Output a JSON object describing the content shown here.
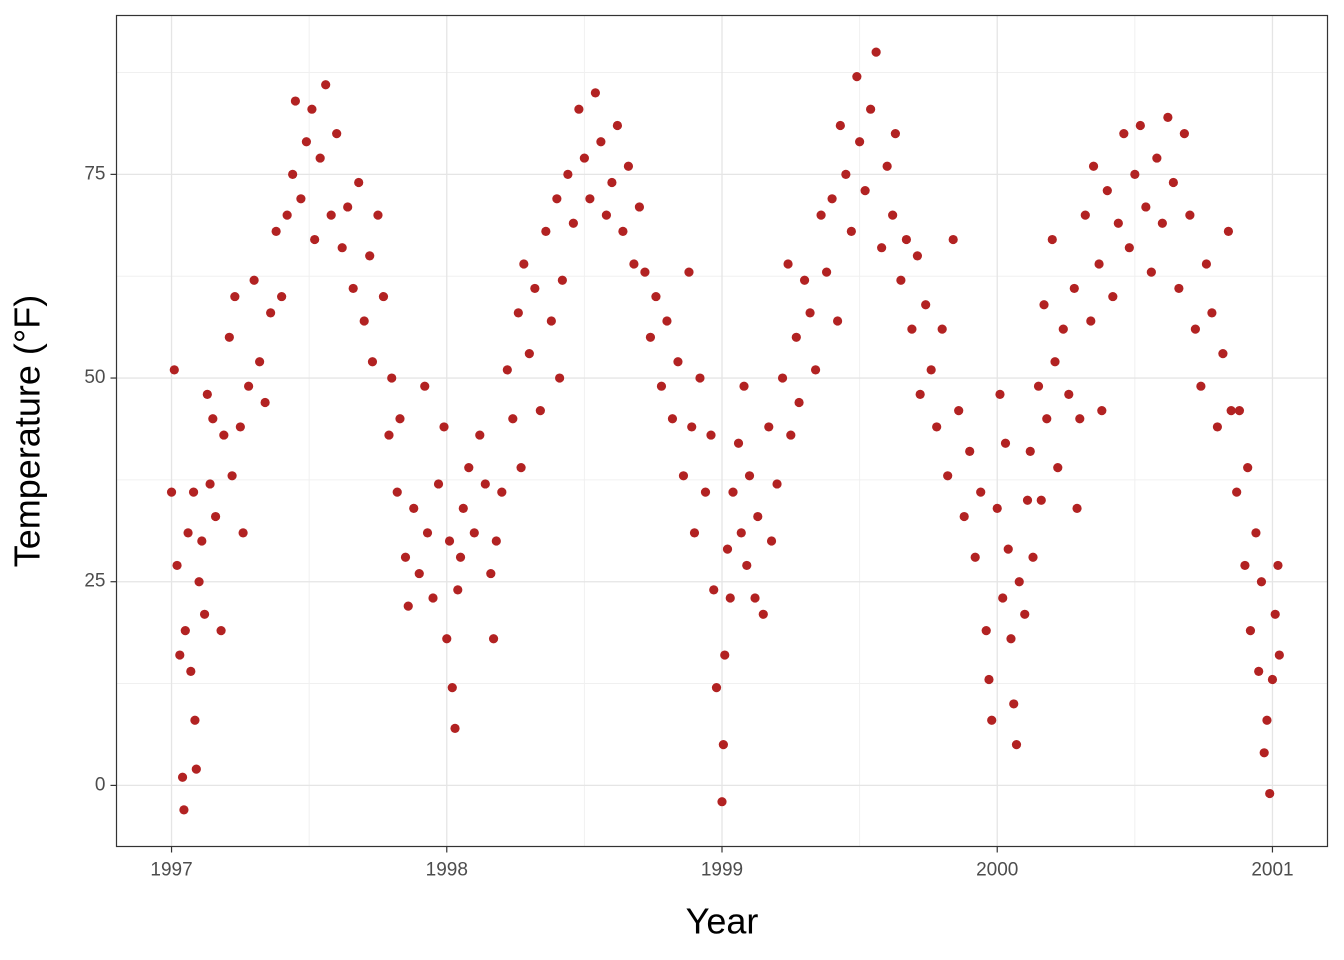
{
  "chart_data": {
    "type": "scatter",
    "x_label": "Year",
    "y_label": "Temperature (°F)",
    "color": "#b22222",
    "grid": true,
    "xlim": [
      1996.8,
      2001.2
    ],
    "xticks": [
      1997,
      1998,
      1999,
      2000,
      2001
    ],
    "ylim": [
      -7.5,
      94.5
    ],
    "yticks": [
      0,
      25,
      50,
      75
    ],
    "x": [
      1997.0,
      1997.01,
      1997.02,
      1997.03,
      1997.04,
      1997.045,
      1997.05,
      1997.06,
      1997.07,
      1997.08,
      1997.085,
      1997.09,
      1997.1,
      1997.11,
      1997.12,
      1997.13,
      1997.14,
      1997.15,
      1997.16,
      1997.18,
      1997.19,
      1997.21,
      1997.22,
      1997.23,
      1997.25,
      1997.26,
      1997.28,
      1997.3,
      1997.32,
      1997.34,
      1997.36,
      1997.38,
      1997.4,
      1997.42,
      1997.44,
      1997.45,
      1997.47,
      1997.49,
      1997.51,
      1997.52,
      1997.54,
      1997.56,
      1997.58,
      1997.6,
      1997.62,
      1997.64,
      1997.66,
      1997.68,
      1997.7,
      1997.72,
      1997.73,
      1997.75,
      1997.77,
      1997.79,
      1997.8,
      1997.82,
      1997.83,
      1997.85,
      1997.86,
      1997.88,
      1997.9,
      1997.92,
      1997.93,
      1997.95,
      1997.97,
      1997.99,
      1998.0,
      1998.01,
      1998.02,
      1998.03,
      1998.04,
      1998.05,
      1998.06,
      1998.08,
      1998.1,
      1998.12,
      1998.14,
      1998.16,
      1998.17,
      1998.18,
      1998.2,
      1998.22,
      1998.24,
      1998.26,
      1998.27,
      1998.28,
      1998.3,
      1998.32,
      1998.34,
      1998.36,
      1998.38,
      1998.4,
      1998.41,
      1998.42,
      1998.44,
      1998.46,
      1998.48,
      1998.5,
      1998.52,
      1998.54,
      1998.56,
      1998.58,
      1998.6,
      1998.62,
      1998.64,
      1998.66,
      1998.68,
      1998.7,
      1998.72,
      1998.74,
      1998.76,
      1998.78,
      1998.8,
      1998.82,
      1998.84,
      1998.86,
      1998.88,
      1998.89,
      1998.9,
      1998.92,
      1998.94,
      1998.96,
      1998.97,
      1998.98,
      1999.0,
      1999.005,
      1999.01,
      1999.02,
      1999.03,
      1999.04,
      1999.06,
      1999.07,
      1999.08,
      1999.09,
      1999.1,
      1999.12,
      1999.13,
      1999.15,
      1999.17,
      1999.18,
      1999.2,
      1999.22,
      1999.24,
      1999.25,
      1999.27,
      1999.28,
      1999.3,
      1999.32,
      1999.34,
      1999.36,
      1999.38,
      1999.4,
      1999.42,
      1999.43,
      1999.45,
      1999.47,
      1999.49,
      1999.5,
      1999.52,
      1999.54,
      1999.56,
      1999.58,
      1999.6,
      1999.62,
      1999.63,
      1999.65,
      1999.67,
      1999.69,
      1999.71,
      1999.72,
      1999.74,
      1999.76,
      1999.78,
      1999.8,
      1999.82,
      1999.84,
      1999.86,
      1999.88,
      1999.9,
      1999.92,
      1999.94,
      1999.96,
      1999.97,
      1999.98,
      2000.0,
      2000.01,
      2000.02,
      2000.03,
      2000.04,
      2000.05,
      2000.06,
      2000.07,
      2000.08,
      2000.1,
      2000.11,
      2000.12,
      2000.13,
      2000.15,
      2000.16,
      2000.17,
      2000.18,
      2000.2,
      2000.21,
      2000.22,
      2000.24,
      2000.26,
      2000.28,
      2000.29,
      2000.3,
      2000.32,
      2000.34,
      2000.35,
      2000.37,
      2000.38,
      2000.4,
      2000.42,
      2000.44,
      2000.46,
      2000.48,
      2000.5,
      2000.52,
      2000.54,
      2000.56,
      2000.58,
      2000.6,
      2000.62,
      2000.64,
      2000.66,
      2000.68,
      2000.7,
      2000.72,
      2000.74,
      2000.76,
      2000.78,
      2000.8,
      2000.82,
      2000.84,
      2000.85,
      2000.87,
      2000.88,
      2000.9,
      2000.91,
      2000.92,
      2000.94,
      2000.95,
      2000.96,
      2000.97,
      2000.98,
      2000.99,
      2001.0,
      2001.01,
      2001.02,
      2001.025
    ],
    "values": [
      36,
      51,
      27,
      16,
      1,
      -3,
      19,
      31,
      14,
      36,
      8,
      2,
      25,
      30,
      21,
      48,
      37,
      45,
      33,
      19,
      43,
      55,
      38,
      60,
      44,
      31,
      49,
      62,
      52,
      47,
      58,
      68,
      60,
      70,
      75,
      84,
      72,
      79,
      83,
      67,
      77,
      86,
      70,
      80,
      66,
      71,
      61,
      74,
      57,
      65,
      52,
      70,
      60,
      43,
      50,
      36,
      45,
      28,
      22,
      34,
      26,
      49,
      31,
      23,
      37,
      44,
      18,
      30,
      12,
      7,
      24,
      28,
      34,
      39,
      31,
      43,
      37,
      26,
      18,
      30,
      36,
      51,
      45,
      58,
      39,
      64,
      53,
      61,
      46,
      68,
      57,
      72,
      50,
      62,
      75,
      69,
      83,
      77,
      72,
      85,
      79,
      70,
      74,
      81,
      68,
      76,
      64,
      71,
      63,
      55,
      60,
      49,
      57,
      45,
      52,
      38,
      63,
      44,
      31,
      50,
      36,
      43,
      24,
      12,
      -2,
      5,
      16,
      29,
      23,
      36,
      42,
      31,
      49,
      27,
      38,
      23,
      33,
      21,
      44,
      30,
      37,
      50,
      64,
      43,
      55,
      47,
      62,
      58,
      51,
      70,
      63,
      72,
      57,
      81,
      75,
      68,
      87,
      79,
      73,
      83,
      90,
      66,
      76,
      70,
      80,
      62,
      67,
      56,
      65,
      48,
      59,
      51,
      44,
      56,
      38,
      67,
      46,
      33,
      41,
      28,
      36,
      19,
      13,
      8,
      34,
      48,
      23,
      42,
      29,
      18,
      10,
      5,
      25,
      21,
      35,
      41,
      28,
      49,
      35,
      59,
      45,
      67,
      52,
      39,
      56,
      48,
      61,
      34,
      45,
      70,
      57,
      76,
      64,
      46,
      73,
      60,
      69,
      80,
      66,
      75,
      81,
      71,
      63,
      77,
      69,
      82,
      74,
      61,
      80,
      70,
      56,
      49,
      64,
      58,
      44,
      53,
      68,
      46,
      36,
      46,
      27,
      39,
      19,
      31,
      14,
      25,
      4,
      8,
      -1,
      13,
      21,
      27,
      16
    ]
  }
}
